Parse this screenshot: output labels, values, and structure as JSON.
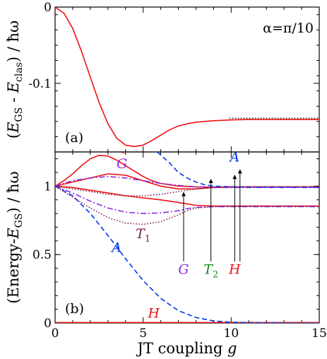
{
  "chart_data": [
    {
      "type": "line",
      "panel_label": "(a)",
      "annotation": "α=π/10",
      "ylabel_parts": [
        "(",
        "E",
        "GS",
        " - ",
        "E",
        "clas",
        ") / ",
        "ħω"
      ],
      "xlim": [
        0,
        15
      ],
      "ylim": [
        -0.19,
        0
      ],
      "yticks": [
        0,
        -0.1
      ],
      "ytick_labels": [
        "0",
        "-0.1"
      ],
      "series": [
        {
          "x": [
            0,
            0.5,
            1,
            1.5,
            2,
            2.5,
            3,
            3.5,
            4,
            4.5,
            5,
            5.5,
            6,
            6.5,
            7,
            7.5,
            8,
            9,
            10,
            11,
            12,
            13,
            14,
            15
          ],
          "y": [
            0,
            -0.008,
            -0.028,
            -0.058,
            -0.092,
            -0.125,
            -0.153,
            -0.172,
            -0.181,
            -0.183,
            -0.181,
            -0.175,
            -0.168,
            -0.161,
            -0.156,
            -0.153,
            -0.151,
            -0.149,
            -0.148,
            -0.1475,
            -0.1475,
            -0.1475,
            -0.1475,
            -0.1475
          ],
          "color": "#ee1111",
          "style": "solid"
        },
        {
          "x": [
            9.9,
            15
          ],
          "y": [
            -0.1458,
            -0.1458
          ],
          "color": "#222222",
          "style": "dotted"
        }
      ]
    },
    {
      "type": "line",
      "panel_label": "(b)",
      "ylabel_parts": [
        "(Energy-",
        "E",
        "GS",
        ") / ",
        "ħω"
      ],
      "xlabel_parts": [
        "JT coupling ",
        "g"
      ],
      "xlim": [
        0,
        15
      ],
      "ylim": [
        0,
        1.25
      ],
      "xticks": [
        0,
        5,
        10,
        15
      ],
      "xtick_labels": [
        "0",
        "5",
        "10",
        "15"
      ],
      "yticks": [
        0,
        0.5,
        1
      ],
      "ytick_labels": [
        "0",
        "0.5",
        "1"
      ],
      "series": [
        {
          "name": "H",
          "x": [
            0,
            0.5,
            1,
            1.5,
            2,
            2.5,
            3,
            3.5,
            4,
            4.5,
            5,
            5.5,
            6,
            7,
            8,
            9,
            10,
            11,
            12,
            13,
            14,
            15
          ],
          "y": [
            1,
            1.04,
            1.09,
            1.15,
            1.2,
            1.225,
            1.22,
            1.19,
            1.15,
            1.11,
            1.07,
            1.04,
            1.02,
            1.0,
            0.995,
            0.993,
            0.993,
            0.995,
            0.995,
            0.995,
            0.995,
            0.995
          ],
          "color": "#ee1111",
          "style": "solid"
        },
        {
          "x": [
            0,
            1,
            2,
            3,
            4,
            5,
            6,
            7,
            8,
            9,
            10,
            11,
            12,
            13,
            14,
            15
          ],
          "y": [
            1,
            1.03,
            1.06,
            1.09,
            1.08,
            1.04,
            1.0,
            0.98,
            0.98,
            0.99,
            0.995,
            0.995,
            0.995,
            0.995,
            0.995,
            0.995
          ],
          "color": "#ee1111",
          "style": "solid"
        },
        {
          "x": [
            0,
            1,
            2,
            3,
            4,
            5,
            6,
            6.8,
            7.5,
            8,
            9,
            10,
            11,
            12,
            13,
            14,
            15
          ],
          "y": [
            1,
            0.99,
            0.97,
            0.95,
            0.93,
            0.915,
            0.9,
            0.885,
            0.87,
            0.86,
            0.855,
            0.855,
            0.855,
            0.855,
            0.855,
            0.855,
            0.855
          ],
          "color": "#ee1111",
          "style": "solid"
        },
        {
          "x": [
            3.8,
            3.9
          ],
          "y": [
            1.25,
            1.24
          ],
          "color": "#ee1111",
          "style": "solid"
        },
        {
          "x": [
            0,
            15
          ],
          "y": [
            0.003,
            0.003
          ],
          "color": "#ee1111",
          "style": "solid"
        },
        {
          "name": "G",
          "x": [
            0,
            1,
            2,
            3,
            4,
            5,
            6,
            7,
            8,
            9,
            10,
            11,
            12,
            13,
            14,
            15
          ],
          "y": [
            1,
            1.04,
            1.06,
            1.07,
            1.06,
            1.04,
            1.02,
            1.005,
            0.995,
            0.99,
            0.99,
            0.99,
            0.99,
            0.99,
            0.99,
            0.99
          ],
          "color": "#8a2be2",
          "style": "dashdot"
        },
        {
          "x": [
            0,
            1,
            2,
            3,
            4,
            5,
            6,
            7,
            7.5,
            8,
            9,
            10,
            11,
            12,
            13,
            14,
            15
          ],
          "y": [
            1,
            0.95,
            0.89,
            0.84,
            0.81,
            0.8,
            0.805,
            0.82,
            0.835,
            0.845,
            0.85,
            0.85,
            0.85,
            0.85,
            0.85,
            0.85,
            0.85
          ],
          "color": "#8a2be2",
          "style": "dashdot"
        },
        {
          "name": "A",
          "x": [
            0,
            1,
            2,
            3,
            4,
            5,
            6,
            7,
            8,
            9,
            10,
            11,
            12,
            13,
            14,
            15
          ],
          "y": [
            1,
            0.93,
            0.8,
            0.64,
            0.47,
            0.31,
            0.18,
            0.09,
            0.04,
            0.015,
            0.005,
            0.002,
            0.001,
            0.0,
            0.0,
            0.0
          ],
          "color": "#0033ee",
          "style": "dashed"
        },
        {
          "x": [
            5.8,
            6.5,
            7,
            7.5,
            8,
            8.5,
            9,
            10,
            11,
            12,
            13,
            14,
            15
          ],
          "y": [
            1.25,
            1.17,
            1.1,
            1.06,
            1.03,
            1.01,
            1.0,
            0.995,
            0.993,
            0.993,
            0.993,
            0.993,
            0.993
          ],
          "color": "#0033ee",
          "style": "dashed"
        },
        {
          "name": "T₁",
          "x": [
            0,
            1,
            2,
            3,
            4,
            5,
            6,
            7,
            7.5,
            8,
            9,
            10,
            11,
            12,
            13,
            14,
            15
          ],
          "y": [
            1,
            0.92,
            0.84,
            0.77,
            0.73,
            0.72,
            0.74,
            0.79,
            0.82,
            0.84,
            0.85,
            0.852,
            0.852,
            0.852,
            0.852,
            0.852,
            0.852
          ],
          "color": "#7a1a50",
          "style": "dotted"
        },
        {
          "x": [
            0,
            1,
            2,
            3,
            4,
            5,
            6,
            7,
            8,
            9,
            10
          ],
          "y": [
            1,
            0.98,
            0.96,
            0.94,
            0.93,
            0.93,
            0.94,
            0.96,
            0.98,
            0.99,
            0.995
          ],
          "color": "#7a1a50",
          "style": "dotted"
        }
      ],
      "labels": [
        {
          "text": "G",
          "x": 3.8,
          "y": 1.13,
          "color": "#8a2be2"
        },
        {
          "text": "A",
          "x": 10.2,
          "y": 1.18,
          "color": "#0033ee"
        },
        {
          "text": "A",
          "x": 3.5,
          "y": 0.52,
          "color": "#0033ee"
        },
        {
          "text": "H",
          "x": 5.6,
          "y": 0.04,
          "color": "#ee1111"
        },
        {
          "text": "T",
          "sub": "1",
          "x": 5.0,
          "y": 0.62,
          "color": "#7a1a50"
        }
      ],
      "arrows": [
        {
          "text": "G",
          "x": 7.3,
          "y_from": 0.45,
          "y_to": 0.955,
          "label_y": 0.36,
          "color": "#8a2be2"
        },
        {
          "text": "T",
          "sub": "2",
          "x": 8.85,
          "y_from": 0.45,
          "y_to": 1.05,
          "label_y": 0.36,
          "color": "#118811"
        },
        {
          "text": "H",
          "x": 10.2,
          "y_from": 0.45,
          "y_to": 1.08,
          "label_y": 0.36,
          "color": "#ee1111"
        },
        {
          "x": 10.5,
          "y_from": 0.45,
          "y_to": 1.12
        }
      ]
    }
  ]
}
